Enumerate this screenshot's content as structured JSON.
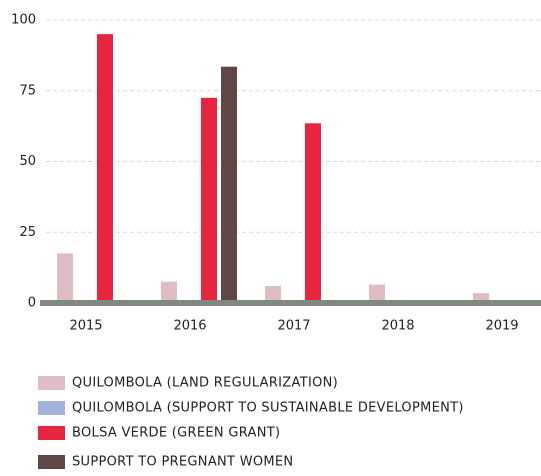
{
  "chart_data": {
    "type": "bar",
    "categories": [
      "2015",
      "2016",
      "2017",
      "2018",
      "2019"
    ],
    "series": [
      {
        "name": "QUILOMBOLA (LAND REGULARIZATION)",
        "color": "#e0bcc4",
        "values": [
          17.5,
          7.5,
          6,
          6.5,
          3.5
        ]
      },
      {
        "name": "QUILOMBOLA (SUPPORT TO SUSTAINABLE DEVELOPMENT)",
        "color": "#a3b3dd",
        "values": [
          0,
          0,
          0,
          0,
          0
        ]
      },
      {
        "name": "BOLSA VERDE  (GREEN GRANT)",
        "color": "#e8253e",
        "values": [
          95,
          72.5,
          63.5,
          0,
          0
        ]
      },
      {
        "name": "SUPPORT TO PREGNANT WOMEN",
        "color": "#5e4744",
        "values": [
          0,
          83.5,
          0,
          0,
          0
        ]
      }
    ],
    "ylim": [
      0,
      100
    ],
    "yticks": [
      0,
      25,
      50,
      75,
      100
    ],
    "grid": true
  }
}
